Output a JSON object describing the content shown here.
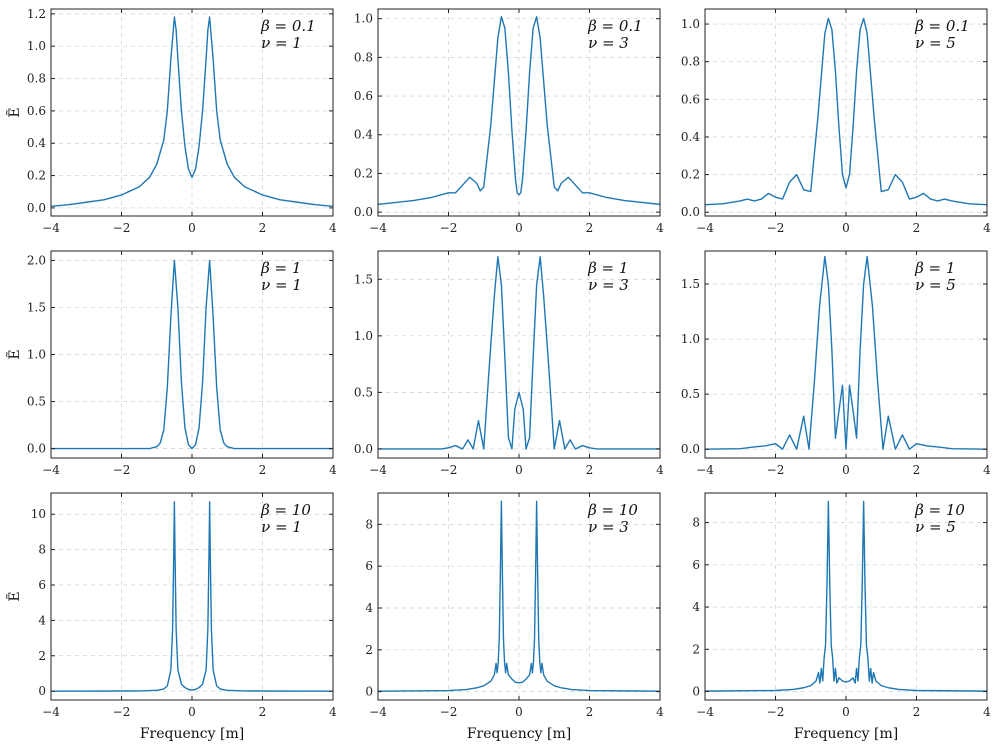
{
  "figure": {
    "line_color": "#1f77b4",
    "grid": true,
    "xlabel": "Frequency [m]",
    "ylabel": "Ẽ"
  },
  "chart_data": [
    {
      "type": "line",
      "row": 0,
      "col": 0,
      "annotation": [
        "β = 0.1",
        "ν = 1"
      ],
      "xlim": [
        -4,
        4
      ],
      "ylim": [
        -0.05,
        1.23
      ],
      "xticks": [
        -4,
        -2,
        0,
        2,
        4
      ],
      "xtick_labels": [
        "−4",
        "−2",
        "0",
        "2",
        "4"
      ],
      "yticks": [
        0,
        0.2,
        0.4,
        0.6,
        0.8,
        1.0,
        1.2
      ],
      "ytick_labels": [
        "0.0",
        "0.2",
        "0.4",
        "0.6",
        "0.8",
        "1.0",
        "1.2"
      ],
      "xlabel": "",
      "ylabel": "Ẽ",
      "series": [
        {
          "x": [
            -4,
            -3.5,
            -3,
            -2.5,
            -2,
            -1.5,
            -1.2,
            -1,
            -0.8,
            -0.7,
            -0.6,
            -0.5,
            -0.45,
            -0.4,
            -0.3,
            -0.2,
            -0.1,
            0,
            0.1,
            0.2,
            0.3,
            0.4,
            0.45,
            0.5,
            0.6,
            0.7,
            0.8,
            1,
            1.2,
            1.5,
            2,
            2.5,
            3,
            3.5,
            4
          ],
          "y": [
            0.01,
            0.02,
            0.035,
            0.05,
            0.08,
            0.13,
            0.19,
            0.27,
            0.42,
            0.6,
            0.92,
            1.18,
            1.1,
            0.92,
            0.6,
            0.38,
            0.24,
            0.19,
            0.24,
            0.38,
            0.6,
            0.92,
            1.1,
            1.18,
            0.92,
            0.6,
            0.42,
            0.27,
            0.19,
            0.13,
            0.08,
            0.05,
            0.035,
            0.02,
            0.01
          ]
        }
      ]
    },
    {
      "type": "line",
      "row": 0,
      "col": 1,
      "annotation": [
        "β = 0.1",
        "ν = 3"
      ],
      "xlim": [
        -4,
        4
      ],
      "ylim": [
        -0.02,
        1.05
      ],
      "xticks": [
        -4,
        -2,
        0,
        2,
        4
      ],
      "xtick_labels": [
        "−4",
        "−2",
        "0",
        "2",
        "4"
      ],
      "yticks": [
        0,
        0.2,
        0.4,
        0.6,
        0.8,
        1.0
      ],
      "ytick_labels": [
        "0.0",
        "0.2",
        "0.4",
        "0.6",
        "0.8",
        "1.0"
      ],
      "xlabel": "",
      "ylabel": "",
      "series": [
        {
          "x": [
            -4,
            -3,
            -2.5,
            -2,
            -1.8,
            -1.6,
            -1.4,
            -1.2,
            -1.1,
            -1,
            -0.8,
            -0.6,
            -0.5,
            -0.4,
            -0.3,
            -0.2,
            -0.1,
            -0.05,
            0,
            0.05,
            0.1,
            0.2,
            0.3,
            0.4,
            0.5,
            0.6,
            0.8,
            1,
            1.1,
            1.2,
            1.4,
            1.6,
            1.8,
            2,
            2.5,
            3,
            4
          ],
          "y": [
            0.04,
            0.06,
            0.075,
            0.1,
            0.1,
            0.14,
            0.18,
            0.15,
            0.11,
            0.13,
            0.45,
            0.9,
            1.01,
            0.95,
            0.72,
            0.42,
            0.17,
            0.1,
            0.09,
            0.1,
            0.17,
            0.42,
            0.72,
            0.95,
            1.01,
            0.9,
            0.45,
            0.13,
            0.11,
            0.15,
            0.18,
            0.14,
            0.1,
            0.1,
            0.075,
            0.06,
            0.04
          ]
        }
      ]
    },
    {
      "type": "line",
      "row": 0,
      "col": 2,
      "annotation": [
        "β = 0.1",
        "ν = 5"
      ],
      "xlim": [
        -4,
        4
      ],
      "ylim": [
        -0.02,
        1.08
      ],
      "xticks": [
        -4,
        -2,
        0,
        2,
        4
      ],
      "xtick_labels": [
        "−4",
        "−2",
        "0",
        "2",
        "4"
      ],
      "yticks": [
        0,
        0.2,
        0.4,
        0.6,
        0.8,
        1.0
      ],
      "ytick_labels": [
        "0.0",
        "0.2",
        "0.4",
        "0.6",
        "0.8",
        "1.0"
      ],
      "xlabel": "",
      "ylabel": "",
      "series": [
        {
          "x": [
            -4,
            -3.5,
            -3,
            -2.8,
            -2.6,
            -2.4,
            -2.2,
            -2,
            -1.8,
            -1.6,
            -1.4,
            -1.2,
            -1,
            -0.8,
            -0.6,
            -0.5,
            -0.4,
            -0.3,
            -0.2,
            -0.1,
            0,
            0.1,
            0.2,
            0.3,
            0.4,
            0.5,
            0.6,
            0.8,
            1,
            1.2,
            1.4,
            1.6,
            1.8,
            2,
            2.2,
            2.4,
            2.6,
            2.8,
            3,
            3.5,
            4
          ],
          "y": [
            0.04,
            0.045,
            0.06,
            0.07,
            0.06,
            0.07,
            0.1,
            0.08,
            0.07,
            0.16,
            0.2,
            0.12,
            0.11,
            0.5,
            0.95,
            1.03,
            0.97,
            0.75,
            0.45,
            0.2,
            0.13,
            0.2,
            0.45,
            0.75,
            0.97,
            1.03,
            0.95,
            0.5,
            0.11,
            0.12,
            0.2,
            0.16,
            0.07,
            0.08,
            0.1,
            0.07,
            0.06,
            0.07,
            0.06,
            0.045,
            0.04
          ]
        }
      ]
    },
    {
      "type": "line",
      "row": 1,
      "col": 0,
      "annotation": [
        "β = 1",
        "ν = 1"
      ],
      "xlim": [
        -4,
        4
      ],
      "ylim": [
        -0.1,
        2.1
      ],
      "xticks": [
        -4,
        -2,
        0,
        2,
        4
      ],
      "xtick_labels": [
        "−4",
        "−2",
        "0",
        "2",
        "4"
      ],
      "yticks": [
        0,
        0.5,
        1.0,
        1.5,
        2.0
      ],
      "ytick_labels": [
        "0.0",
        "0.5",
        "1.0",
        "1.5",
        "2.0"
      ],
      "xlabel": "",
      "ylabel": "Ẽ",
      "series": [
        {
          "x": [
            -4,
            -1.2,
            -1,
            -0.9,
            -0.8,
            -0.7,
            -0.6,
            -0.5,
            -0.4,
            -0.3,
            -0.2,
            -0.1,
            0,
            0.1,
            0.2,
            0.3,
            0.4,
            0.5,
            0.6,
            0.7,
            0.8,
            0.9,
            1,
            1.2,
            4
          ],
          "y": [
            0,
            0,
            0.02,
            0.06,
            0.2,
            0.65,
            1.4,
            2.0,
            1.5,
            0.7,
            0.22,
            0.04,
            0.0,
            0.04,
            0.22,
            0.7,
            1.5,
            2.0,
            1.4,
            0.65,
            0.2,
            0.06,
            0.02,
            0,
            0
          ]
        }
      ]
    },
    {
      "type": "line",
      "row": 1,
      "col": 1,
      "annotation": [
        "β = 1",
        "ν = 3"
      ],
      "xlim": [
        -4,
        4
      ],
      "ylim": [
        -0.08,
        1.75
      ],
      "xticks": [
        -4,
        -2,
        0,
        2,
        4
      ],
      "xtick_labels": [
        "−4",
        "−2",
        "0",
        "2",
        "4"
      ],
      "yticks": [
        0,
        0.5,
        1.0,
        1.5
      ],
      "ytick_labels": [
        "0.0",
        "0.5",
        "1.0",
        "1.5"
      ],
      "xlabel": "",
      "ylabel": "",
      "series": [
        {
          "x": [
            -4,
            -2.2,
            -2,
            -1.8,
            -1.6,
            -1.45,
            -1.3,
            -1.15,
            -1.0,
            -0.85,
            -0.7,
            -0.6,
            -0.5,
            -0.4,
            -0.3,
            -0.2,
            -0.12,
            0,
            0.12,
            0.2,
            0.3,
            0.4,
            0.5,
            0.6,
            0.7,
            0.85,
            1.0,
            1.15,
            1.3,
            1.45,
            1.6,
            1.8,
            2,
            2.2,
            4
          ],
          "y": [
            0,
            0,
            0.01,
            0.03,
            0.0,
            0.08,
            0.0,
            0.25,
            0.0,
            0.7,
            1.35,
            1.7,
            1.45,
            0.8,
            0.1,
            0.0,
            0.35,
            0.5,
            0.35,
            0.0,
            0.1,
            0.8,
            1.45,
            1.7,
            1.35,
            0.7,
            0.0,
            0.25,
            0.0,
            0.08,
            0.0,
            0.03,
            0.01,
            0,
            0
          ]
        }
      ]
    },
    {
      "type": "line",
      "row": 1,
      "col": 2,
      "annotation": [
        "β = 1",
        "ν = 5"
      ],
      "xlim": [
        -4,
        4
      ],
      "ylim": [
        -0.08,
        1.8
      ],
      "xticks": [
        -4,
        -2,
        0,
        2,
        4
      ],
      "xtick_labels": [
        "−4",
        "−2",
        "0",
        "2",
        "4"
      ],
      "yticks": [
        0,
        0.5,
        1.0,
        1.5
      ],
      "ytick_labels": [
        "0.0",
        "0.5",
        "1.0",
        "1.5"
      ],
      "xlabel": "",
      "ylabel": "",
      "series": [
        {
          "x": [
            -4,
            -3,
            -2.6,
            -2.3,
            -2.0,
            -1.8,
            -1.6,
            -1.4,
            -1.2,
            -1.05,
            -0.9,
            -0.75,
            -0.6,
            -0.5,
            -0.4,
            -0.3,
            -0.2,
            -0.1,
            0,
            0.1,
            0.2,
            0.3,
            0.4,
            0.5,
            0.6,
            0.75,
            0.9,
            1.05,
            1.2,
            1.4,
            1.6,
            1.8,
            2.0,
            2.3,
            2.6,
            3,
            4
          ],
          "y": [
            0,
            0.005,
            0.02,
            0.03,
            0.05,
            0.0,
            0.13,
            0.0,
            0.3,
            0.0,
            0.6,
            1.3,
            1.75,
            1.5,
            0.9,
            0.1,
            0.35,
            0.58,
            0.0,
            0.58,
            0.35,
            0.1,
            0.9,
            1.5,
            1.75,
            1.3,
            0.6,
            0.0,
            0.3,
            0.0,
            0.13,
            0.0,
            0.05,
            0.03,
            0.02,
            0.005,
            0
          ]
        }
      ]
    },
    {
      "type": "line",
      "row": 2,
      "col": 0,
      "annotation": [
        "β = 10",
        "ν = 1"
      ],
      "xlim": [
        -4,
        4
      ],
      "ylim": [
        -0.5,
        11.2
      ],
      "xticks": [
        -4,
        -2,
        0,
        2,
        4
      ],
      "xtick_labels": [
        "−4",
        "−2",
        "0",
        "2",
        "4"
      ],
      "yticks": [
        0,
        2,
        4,
        6,
        8,
        10
      ],
      "ytick_labels": [
        "0",
        "2",
        "4",
        "6",
        "8",
        "10"
      ],
      "xlabel": "Frequency [m]",
      "ylabel": "Ẽ",
      "series": [
        {
          "x": [
            -4,
            -1.5,
            -1,
            -0.8,
            -0.7,
            -0.6,
            -0.55,
            -0.52,
            -0.5,
            -0.48,
            -0.45,
            -0.4,
            -0.3,
            -0.2,
            -0.1,
            0,
            0.1,
            0.2,
            0.3,
            0.4,
            0.45,
            0.48,
            0.5,
            0.52,
            0.55,
            0.6,
            0.7,
            0.8,
            1,
            1.5,
            4
          ],
          "y": [
            0,
            0.01,
            0.05,
            0.12,
            0.3,
            1.2,
            3.5,
            7.5,
            10.7,
            7.5,
            3.5,
            1.2,
            0.4,
            0.2,
            0.1,
            0.06,
            0.1,
            0.2,
            0.4,
            1.2,
            3.5,
            7.5,
            10.7,
            7.5,
            3.5,
            1.2,
            0.3,
            0.12,
            0.05,
            0.01,
            0
          ]
        }
      ]
    },
    {
      "type": "line",
      "row": 2,
      "col": 1,
      "annotation": [
        "β = 10",
        "ν = 3"
      ],
      "xlim": [
        -4,
        4
      ],
      "ylim": [
        -0.4,
        9.5
      ],
      "xticks": [
        -4,
        -2,
        0,
        2,
        4
      ],
      "xtick_labels": [
        "−4",
        "−2",
        "0",
        "2",
        "4"
      ],
      "yticks": [
        0,
        2,
        4,
        6,
        8
      ],
      "ytick_labels": [
        "0",
        "2",
        "4",
        "6",
        "8"
      ],
      "xlabel": "Frequency [m]",
      "ylabel": "",
      "series": [
        {
          "x": [
            -4,
            -2,
            -1.5,
            -1.2,
            -1,
            -0.8,
            -0.7,
            -0.65,
            -0.62,
            -0.59,
            -0.56,
            -0.53,
            -0.5,
            -0.47,
            -0.44,
            -0.41,
            -0.38,
            -0.35,
            -0.3,
            -0.2,
            -0.1,
            0,
            0.1,
            0.2,
            0.3,
            0.35,
            0.38,
            0.41,
            0.44,
            0.47,
            0.5,
            0.53,
            0.56,
            0.59,
            0.62,
            0.65,
            0.7,
            0.8,
            1,
            1.2,
            1.5,
            2,
            4
          ],
          "y": [
            0.02,
            0.05,
            0.1,
            0.18,
            0.28,
            0.5,
            0.8,
            1.35,
            0.9,
            1.4,
            2.5,
            5.5,
            9.1,
            5.5,
            2.5,
            1.4,
            0.9,
            1.35,
            0.8,
            0.6,
            0.45,
            0.42,
            0.45,
            0.6,
            0.8,
            1.35,
            0.9,
            1.4,
            2.5,
            5.5,
            9.1,
            5.5,
            2.5,
            1.4,
            0.9,
            1.35,
            0.8,
            0.5,
            0.28,
            0.18,
            0.1,
            0.05,
            0.02
          ]
        }
      ]
    },
    {
      "type": "line",
      "row": 2,
      "col": 2,
      "annotation": [
        "β = 10",
        "ν = 5"
      ],
      "xlim": [
        -4,
        4
      ],
      "ylim": [
        -0.4,
        9.4
      ],
      "xticks": [
        -4,
        -2,
        0,
        2,
        4
      ],
      "xtick_labels": [
        "−4",
        "−2",
        "0",
        "2",
        "4"
      ],
      "yticks": [
        0,
        2,
        4,
        6,
        8
      ],
      "ytick_labels": [
        "0",
        "2",
        "4",
        "6",
        "8"
      ],
      "xlabel": "Frequency [m]",
      "ylabel": "",
      "series": [
        {
          "x": [
            -4,
            -2,
            -1.5,
            -1.2,
            -1,
            -0.85,
            -0.78,
            -0.74,
            -0.7,
            -0.66,
            -0.62,
            -0.58,
            -0.54,
            -0.5,
            -0.46,
            -0.42,
            -0.38,
            -0.34,
            -0.3,
            -0.26,
            -0.2,
            -0.1,
            0,
            0.1,
            0.2,
            0.26,
            0.3,
            0.34,
            0.38,
            0.42,
            0.46,
            0.5,
            0.54,
            0.58,
            0.62,
            0.66,
            0.7,
            0.74,
            0.78,
            0.85,
            1,
            1.2,
            1.5,
            2,
            4
          ],
          "y": [
            0.02,
            0.05,
            0.1,
            0.18,
            0.28,
            0.5,
            0.9,
            0.4,
            1.1,
            0.5,
            1.6,
            2.2,
            5.0,
            9.0,
            5.0,
            2.2,
            1.6,
            0.5,
            1.1,
            0.4,
            0.65,
            0.5,
            0.45,
            0.5,
            0.65,
            0.4,
            1.1,
            0.5,
            1.6,
            2.2,
            5.0,
            9.0,
            5.0,
            2.2,
            1.6,
            0.5,
            1.1,
            0.4,
            0.9,
            0.5,
            0.28,
            0.18,
            0.1,
            0.05,
            0.02
          ]
        }
      ]
    }
  ]
}
